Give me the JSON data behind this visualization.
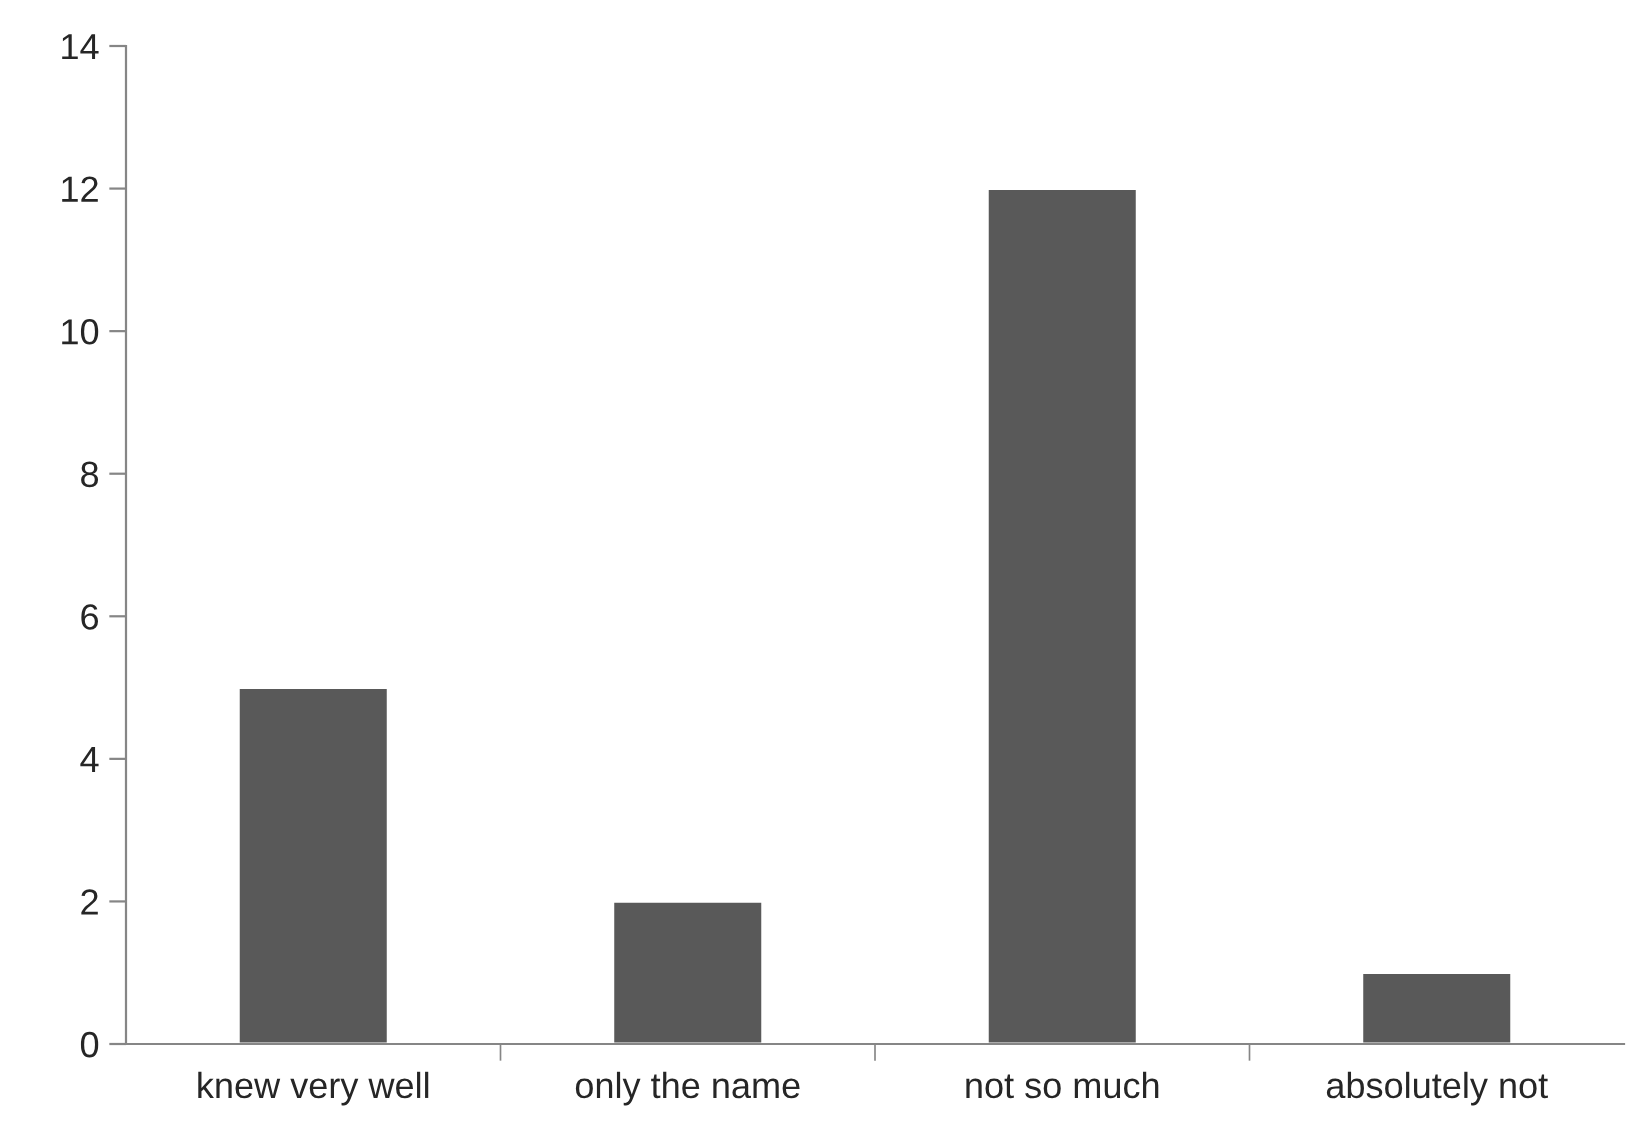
{
  "chart_data": {
    "type": "bar",
    "categories": [
      "knew very well",
      "only the name",
      "not so much",
      "absolutely not"
    ],
    "values": [
      5,
      2,
      12,
      1
    ],
    "color": "#595959",
    "ylim": [
      0,
      14
    ],
    "yticks": [
      0,
      2,
      4,
      6,
      8,
      10,
      12,
      14
    ],
    "grid": false
  }
}
